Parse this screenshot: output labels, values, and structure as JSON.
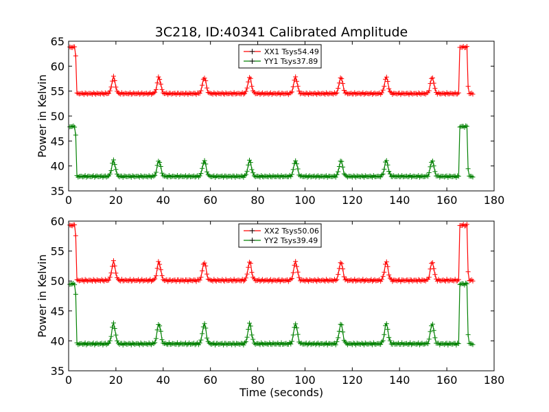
{
  "chart_data": [
    {
      "type": "line",
      "title": "3C218, ID:40341 Calibrated Amplitude",
      "xlabel": "",
      "ylabel": "Power in Kelvin",
      "xlim": [
        0,
        180
      ],
      "ylim": [
        35,
        65
      ],
      "xticks": [
        "0",
        "20",
        "40",
        "60",
        "80",
        "100",
        "120",
        "140",
        "160",
        "180"
      ],
      "yticks": [
        "35",
        "40",
        "45",
        "50",
        "55",
        "60",
        "65"
      ],
      "legend_position": "top-center",
      "series": [
        {
          "name": "XX1 Tsys54.49",
          "color": "#ff0000",
          "baseline": 54.5,
          "calibration_high": 63.8,
          "peak": 57.8,
          "peak_times": [
            19,
            38.2,
            57.4,
            76.6,
            96,
            115.2,
            134.4,
            153.8
          ],
          "cal_start_end": [
            0,
            3.5
          ],
          "cal_end_window": [
            165.5,
            168.5
          ],
          "x_end": 171
        },
        {
          "name": "YY1 Tsys37.89",
          "color": "#008000",
          "baseline": 37.9,
          "calibration_high": 47.9,
          "peak": 41.1,
          "peak_times": [
            19,
            38.2,
            57.4,
            76.6,
            96,
            115.2,
            134.4,
            153.8
          ],
          "cal_start_end": [
            0,
            3.5
          ],
          "cal_end_window": [
            165.5,
            168.5
          ],
          "x_end": 171
        }
      ]
    },
    {
      "type": "line",
      "title": "",
      "xlabel": "Time (seconds)",
      "ylabel": "Power in Kelvin",
      "xlim": [
        0,
        180
      ],
      "ylim": [
        35,
        60
      ],
      "xticks": [
        "0",
        "20",
        "40",
        "60",
        "80",
        "100",
        "120",
        "140",
        "160",
        "180"
      ],
      "yticks": [
        "35",
        "40",
        "45",
        "50",
        "55",
        "60"
      ],
      "legend_position": "top-center",
      "series": [
        {
          "name": "XX2 Tsys50.06",
          "color": "#ff0000",
          "baseline": 50.1,
          "calibration_high": 59.3,
          "peak": 53.2,
          "peak_times": [
            19,
            38.2,
            57.4,
            76.6,
            96,
            115.2,
            134.4,
            153.8
          ],
          "cal_start_end": [
            0,
            3.5
          ],
          "cal_end_window": [
            165.5,
            168.5
          ],
          "x_end": 171
        },
        {
          "name": "YY2 Tsys39.49",
          "color": "#008000",
          "baseline": 39.5,
          "calibration_high": 49.5,
          "peak": 42.9,
          "peak_times": [
            19,
            38.2,
            57.4,
            76.6,
            96,
            115.2,
            134.4,
            153.8
          ],
          "cal_start_end": [
            0,
            3.5
          ],
          "cal_end_window": [
            165.5,
            168.5
          ],
          "x_end": 171
        }
      ]
    }
  ]
}
